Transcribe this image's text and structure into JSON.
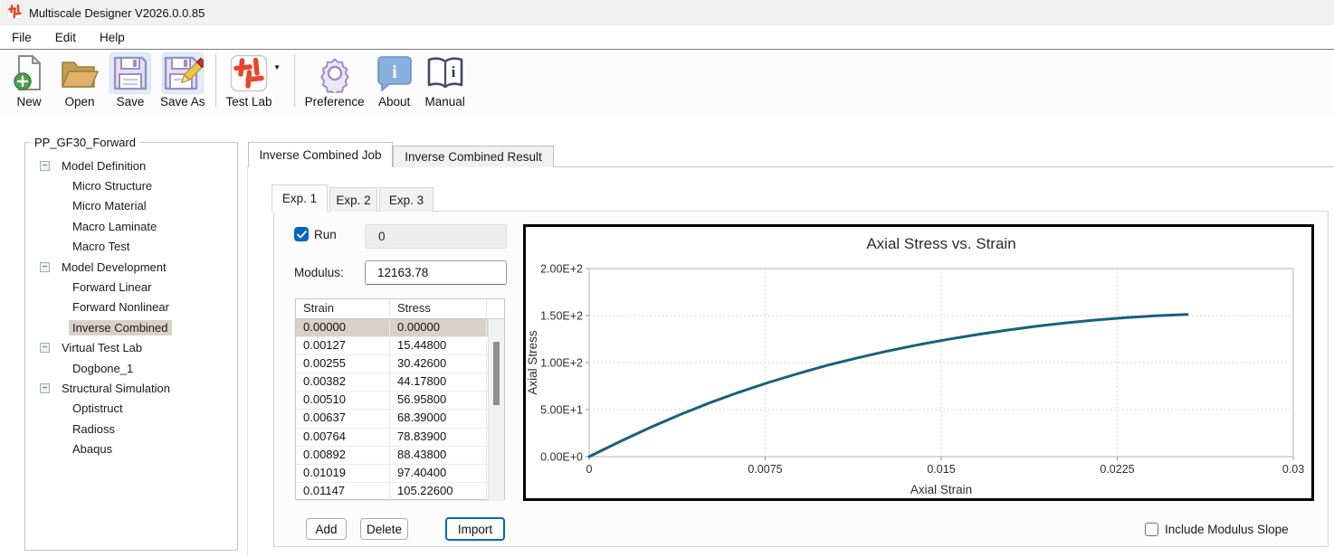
{
  "window": {
    "title": "Multiscale Designer V2026.0.0.85",
    "icon": "multiscale-logo-icon"
  },
  "menu": {
    "items": [
      "File",
      "Edit",
      "Help"
    ]
  },
  "toolbar": {
    "buttons": [
      {
        "label": "New",
        "icon": "new-document-icon",
        "highlighted": false,
        "separator_after": false,
        "has_dropdown": false
      },
      {
        "label": "Open",
        "icon": "open-folder-icon",
        "highlighted": false,
        "separator_after": false,
        "has_dropdown": false
      },
      {
        "label": "Save",
        "icon": "save-icon",
        "highlighted": true,
        "separator_after": false,
        "has_dropdown": false
      },
      {
        "label": "Save As",
        "icon": "save-as-icon",
        "highlighted": true,
        "separator_after": true,
        "has_dropdown": false
      },
      {
        "label": "Test Lab",
        "icon": "test-lab-icon",
        "highlighted": false,
        "separator_after": true,
        "has_dropdown": true
      },
      {
        "label": "Preference",
        "icon": "gear-icon",
        "highlighted": false,
        "separator_after": false,
        "has_dropdown": false
      },
      {
        "label": "About",
        "icon": "about-icon",
        "highlighted": false,
        "separator_after": false,
        "has_dropdown": false
      },
      {
        "label": "Manual",
        "icon": "manual-icon",
        "highlighted": false,
        "separator_after": false,
        "has_dropdown": false
      }
    ]
  },
  "tree": {
    "group_label": "PP_GF30_Forward",
    "items": [
      {
        "label": "Model Definition",
        "level": 0,
        "expandable": true,
        "selected": false
      },
      {
        "label": "Micro Structure",
        "level": 1,
        "expandable": false,
        "selected": false
      },
      {
        "label": "Micro Material",
        "level": 1,
        "expandable": false,
        "selected": false
      },
      {
        "label": "Macro Laminate",
        "level": 1,
        "expandable": false,
        "selected": false
      },
      {
        "label": "Macro Test",
        "level": 1,
        "expandable": false,
        "selected": false
      },
      {
        "label": "Model Development",
        "level": 0,
        "expandable": true,
        "selected": false
      },
      {
        "label": "Forward Linear",
        "level": 1,
        "expandable": false,
        "selected": false
      },
      {
        "label": "Forward Nonlinear",
        "level": 1,
        "expandable": false,
        "selected": false
      },
      {
        "label": "Inverse Combined",
        "level": 1,
        "expandable": false,
        "selected": true
      },
      {
        "label": "Virtual Test Lab",
        "level": 0,
        "expandable": true,
        "selected": false
      },
      {
        "label": "Dogbone_1",
        "level": 1,
        "expandable": false,
        "selected": false
      },
      {
        "label": "Structural Simulation",
        "level": 0,
        "expandable": true,
        "selected": false
      },
      {
        "label": "Optistruct",
        "level": 1,
        "expandable": false,
        "selected": false
      },
      {
        "label": "Radioss",
        "level": 1,
        "expandable": false,
        "selected": false
      },
      {
        "label": "Abaqus",
        "level": 1,
        "expandable": false,
        "selected": false
      }
    ]
  },
  "tabs": {
    "main": [
      {
        "label": "Inverse Combined Job",
        "active": true
      },
      {
        "label": "Inverse Combined Result",
        "active": false
      }
    ],
    "exp": [
      {
        "label": "Exp. 1",
        "active": true
      },
      {
        "label": "Exp. 2",
        "active": false
      },
      {
        "label": "Exp. 3",
        "active": false
      }
    ]
  },
  "controls": {
    "run_label": "Run",
    "run_checked": true,
    "run_value": "0",
    "modulus_label": "Modulus:",
    "modulus_value": "12163.78",
    "add_label": "Add",
    "delete_label": "Delete",
    "import_label": "Import",
    "include_modulus_slope_label": "Include Modulus Slope",
    "include_modulus_slope_checked": false
  },
  "table": {
    "columns": [
      "Strain",
      "Stress"
    ],
    "selected_row": 0,
    "rows": [
      [
        "0.00000",
        "0.00000"
      ],
      [
        "0.00127",
        "15.44800"
      ],
      [
        "0.00255",
        "30.42600"
      ],
      [
        "0.00382",
        "44.17800"
      ],
      [
        "0.00510",
        "56.95800"
      ],
      [
        "0.00637",
        "68.39000"
      ],
      [
        "0.00764",
        "78.83900"
      ],
      [
        "0.00892",
        "88.43800"
      ],
      [
        "0.01019",
        "97.40400"
      ],
      [
        "0.01147",
        "105.22600"
      ]
    ]
  },
  "chart_data": {
    "type": "line",
    "title": "Axial Stress vs. Strain",
    "xlabel": "Axial Strain",
    "ylabel": "Axial Stress",
    "xlim": [
      0,
      0.03
    ],
    "ylim": [
      0,
      200
    ],
    "x_ticks": [
      0,
      0.0075,
      0.015,
      0.0225,
      0.03
    ],
    "x_tick_labels": [
      "0",
      "0.0075",
      "0.015",
      "0.0225",
      "0.03"
    ],
    "y_ticks": [
      0,
      50,
      100,
      150,
      200
    ],
    "y_tick_labels": [
      "0.00E+0",
      "5.00E+1",
      "1.00E+2",
      "1.50E+2",
      "2.00E+2"
    ],
    "grid": true,
    "legend": false,
    "line_color": "#19607e",
    "series": [
      {
        "name": "Axial Stress",
        "points": [
          [
            0.0,
            0.0
          ],
          [
            0.00127,
            15.448
          ],
          [
            0.00255,
            30.426
          ],
          [
            0.00382,
            44.178
          ],
          [
            0.0051,
            56.958
          ],
          [
            0.00637,
            68.39
          ],
          [
            0.00764,
            78.839
          ],
          [
            0.00892,
            88.438
          ],
          [
            0.01019,
            97.404
          ],
          [
            0.01147,
            105.226
          ],
          [
            0.01274,
            112.4
          ],
          [
            0.01402,
            118.9
          ],
          [
            0.01529,
            124.7
          ],
          [
            0.01656,
            129.9
          ],
          [
            0.01784,
            134.6
          ],
          [
            0.01911,
            138.8
          ],
          [
            0.02039,
            142.4
          ],
          [
            0.02166,
            145.5
          ],
          [
            0.02294,
            148.0
          ],
          [
            0.02421,
            149.9
          ],
          [
            0.02548,
            151.2
          ]
        ]
      }
    ]
  }
}
